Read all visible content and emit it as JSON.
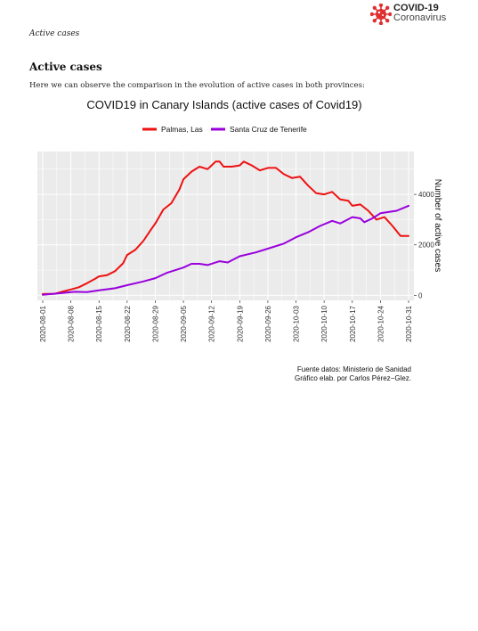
{
  "logo": {
    "title": "COVID-19",
    "subtitle": "Coronavirus"
  },
  "running_head": "Active cases",
  "section_title": "Active cases",
  "intro": "Here we can observe the comparison in the evolution of active cases in both provinces:",
  "colors": {
    "palmas": "#ee1111",
    "tenerife": "#9900dd",
    "panel": "#ebebeb",
    "logo": "#e03131"
  },
  "chart_data": {
    "type": "line",
    "title": "COVID19 in Canary Islands (active cases of Covid19)",
    "xlabel": "",
    "ylabel": "Number of active cases",
    "y_axis_side": "right",
    "xlim": [
      "2020-08-01",
      "2020-10-31"
    ],
    "ylim": [
      -200,
      5700
    ],
    "x_ticks": [
      "2020-08-01",
      "2020-08-08",
      "2020-08-15",
      "2020-08-22",
      "2020-08-29",
      "2020-09-05",
      "2020-09-12",
      "2020-09-19",
      "2020-09-26",
      "2020-10-03",
      "2020-10-10",
      "2020-10-17",
      "2020-10-24",
      "2020-10-31"
    ],
    "y_ticks": [
      0,
      2000,
      4000
    ],
    "legend_position": "top",
    "grid": true,
    "series": [
      {
        "name": "Palmas, Las",
        "points": [
          [
            "2020-08-01",
            50
          ],
          [
            "2020-08-04",
            60
          ],
          [
            "2020-08-06",
            150
          ],
          [
            "2020-08-08",
            230
          ],
          [
            "2020-08-10",
            320
          ],
          [
            "2020-08-12",
            480
          ],
          [
            "2020-08-14",
            650
          ],
          [
            "2020-08-15",
            750
          ],
          [
            "2020-08-17",
            800
          ],
          [
            "2020-08-19",
            960
          ],
          [
            "2020-08-21",
            1270
          ],
          [
            "2020-08-22",
            1600
          ],
          [
            "2020-08-24",
            1800
          ],
          [
            "2020-08-26",
            2150
          ],
          [
            "2020-08-28",
            2620
          ],
          [
            "2020-08-29",
            2850
          ],
          [
            "2020-08-31",
            3400
          ],
          [
            "2020-09-02",
            3650
          ],
          [
            "2020-09-04",
            4200
          ],
          [
            "2020-09-05",
            4600
          ],
          [
            "2020-09-07",
            4900
          ],
          [
            "2020-09-09",
            5100
          ],
          [
            "2020-09-11",
            5000
          ],
          [
            "2020-09-12",
            5150
          ],
          [
            "2020-09-13",
            5300
          ],
          [
            "2020-09-14",
            5300
          ],
          [
            "2020-09-15",
            5100
          ],
          [
            "2020-09-17",
            5100
          ],
          [
            "2020-09-19",
            5150
          ],
          [
            "2020-09-20",
            5300
          ],
          [
            "2020-09-22",
            5150
          ],
          [
            "2020-09-24",
            4950
          ],
          [
            "2020-09-26",
            5050
          ],
          [
            "2020-09-28",
            5050
          ],
          [
            "2020-09-30",
            4800
          ],
          [
            "2020-10-02",
            4650
          ],
          [
            "2020-10-04",
            4700
          ],
          [
            "2020-10-06",
            4350
          ],
          [
            "2020-10-08",
            4050
          ],
          [
            "2020-10-10",
            4000
          ],
          [
            "2020-10-12",
            4100
          ],
          [
            "2020-10-14",
            3800
          ],
          [
            "2020-10-16",
            3750
          ],
          [
            "2020-10-17",
            3550
          ],
          [
            "2020-10-19",
            3600
          ],
          [
            "2020-10-21",
            3350
          ],
          [
            "2020-10-23",
            3000
          ],
          [
            "2020-10-25",
            3100
          ],
          [
            "2020-10-27",
            2750
          ],
          [
            "2020-10-29",
            2350
          ],
          [
            "2020-10-31",
            2350
          ]
        ]
      },
      {
        "name": "Santa Cruz de Tenerife",
        "points": [
          [
            "2020-08-01",
            20
          ],
          [
            "2020-08-05",
            80
          ],
          [
            "2020-08-09",
            140
          ],
          [
            "2020-08-12",
            130
          ],
          [
            "2020-08-15",
            200
          ],
          [
            "2020-08-19",
            280
          ],
          [
            "2020-08-22",
            400
          ],
          [
            "2020-08-26",
            550
          ],
          [
            "2020-08-29",
            680
          ],
          [
            "2020-09-01",
            900
          ],
          [
            "2020-09-05",
            1100
          ],
          [
            "2020-09-07",
            1250
          ],
          [
            "2020-09-09",
            1250
          ],
          [
            "2020-09-11",
            1200
          ],
          [
            "2020-09-14",
            1350
          ],
          [
            "2020-09-16",
            1300
          ],
          [
            "2020-09-19",
            1550
          ],
          [
            "2020-09-23",
            1700
          ],
          [
            "2020-09-26",
            1850
          ],
          [
            "2020-09-30",
            2050
          ],
          [
            "2020-10-03",
            2300
          ],
          [
            "2020-10-06",
            2500
          ],
          [
            "2020-10-09",
            2750
          ],
          [
            "2020-10-12",
            2950
          ],
          [
            "2020-10-14",
            2850
          ],
          [
            "2020-10-17",
            3100
          ],
          [
            "2020-10-19",
            3050
          ],
          [
            "2020-10-20",
            2900
          ],
          [
            "2020-10-22",
            3050
          ],
          [
            "2020-10-24",
            3250
          ],
          [
            "2020-10-26",
            3300
          ],
          [
            "2020-10-28",
            3350
          ],
          [
            "2020-10-31",
            3550
          ]
        ]
      }
    ],
    "caption": [
      "Fuente datos: Ministerio de Sanidad",
      "Gráfico elab. por Carlos Pérez−Glez."
    ]
  }
}
